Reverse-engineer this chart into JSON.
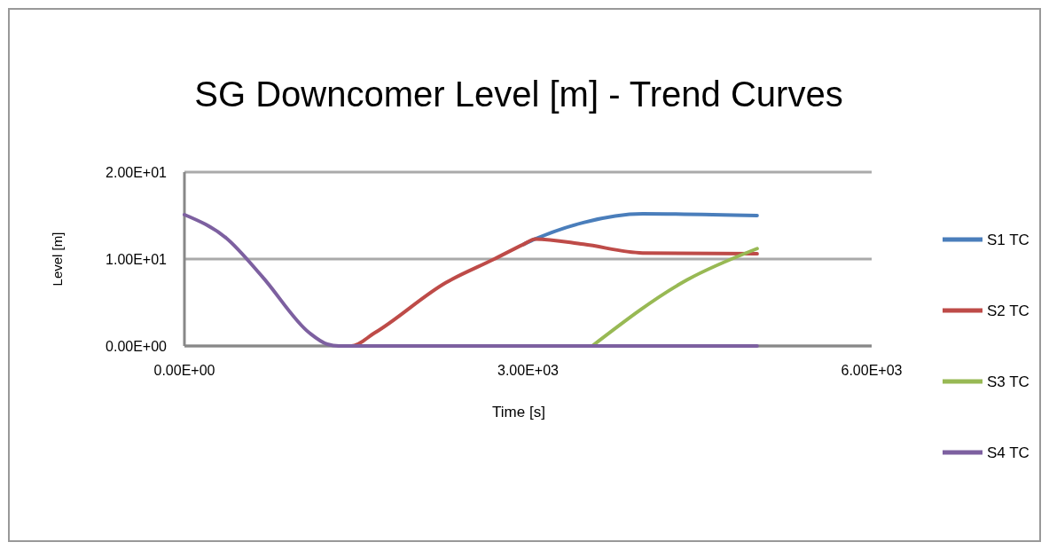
{
  "chart_data": {
    "type": "line",
    "title": "SG Downcomer Level [m] - Trend Curves",
    "xlabel": "Time [s]",
    "ylabel": "Level [m]",
    "xlim": [
      0,
      6000
    ],
    "xticks": [
      {
        "value": 0,
        "label": "0.00E+00"
      },
      {
        "value": 3000,
        "label": "3.00E+03"
      },
      {
        "value": 6000,
        "label": "6.00E+03"
      }
    ],
    "ylim": [
      0,
      20
    ],
    "yticks": [
      {
        "value": 0,
        "label": "0.00E+00"
      },
      {
        "value": 10,
        "label": "1.00E+01"
      },
      {
        "value": 20,
        "label": "2.00E+01"
      }
    ],
    "grid": "y",
    "legend": "right",
    "marker": "none",
    "line_style": "solid",
    "series": [
      {
        "name": "S1 TC",
        "color": "#4a7ebb",
        "x": [
          2962,
          3063,
          3484,
          4000,
          5000
        ],
        "values": [
          11.7,
          12.3,
          14.2,
          15.2,
          15.0
        ]
      },
      {
        "name": "S2 TC",
        "color": "#be4b48",
        "x": [
          1350,
          1457,
          1660,
          2284,
          2705,
          2962,
          3063,
          3484,
          4000,
          5000
        ],
        "values": [
          0,
          0,
          1.5,
          7.3,
          10.0,
          11.7,
          12.3,
          11.7,
          10.7,
          10.6
        ]
      },
      {
        "name": "S3 TC",
        "color": "#98b954",
        "x": [
          3560,
          4388,
          5000
        ],
        "values": [
          0,
          7.6,
          11.2
        ]
      },
      {
        "name": "S4 TC",
        "color": "#7d60a0",
        "x": [
          0,
          366,
          678,
          1091,
          1247,
          1350,
          5000
        ],
        "values": [
          15.1,
          12.4,
          8.0,
          1.5,
          0.2,
          0,
          0
        ]
      }
    ]
  }
}
